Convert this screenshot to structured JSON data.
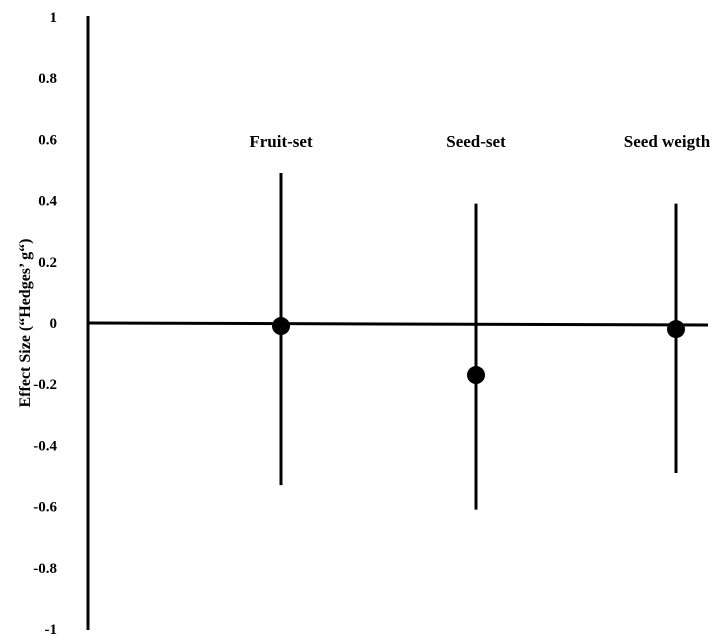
{
  "chart_data": {
    "type": "scatter",
    "title": "",
    "xlabel": "",
    "ylabel": "Effect Size (“Hedges’ g“)",
    "ylim": [
      -1,
      1
    ],
    "yticks": [
      1,
      0.8,
      0.6,
      0.4,
      0.2,
      0,
      -0.2,
      -0.4,
      -0.6,
      -0.8,
      -1
    ],
    "ytick_labels": [
      "1",
      "0.8",
      "0.6",
      "0.4",
      "0.2",
      "0",
      "-0.2",
      "-0.4",
      "-0.6",
      "-0.8",
      "-1"
    ],
    "grid": false,
    "legend": "none",
    "categories": [
      "Fruit-set",
      "Seed-set",
      "Seed weigth"
    ],
    "values": [
      -0.01,
      -0.17,
      -0.02
    ],
    "ci_upper": [
      0.49,
      0.39,
      0.39
    ],
    "ci_lower": [
      -0.53,
      -0.61,
      -0.49
    ],
    "colors": {
      "axis": "#000000",
      "point": "#000000"
    }
  }
}
